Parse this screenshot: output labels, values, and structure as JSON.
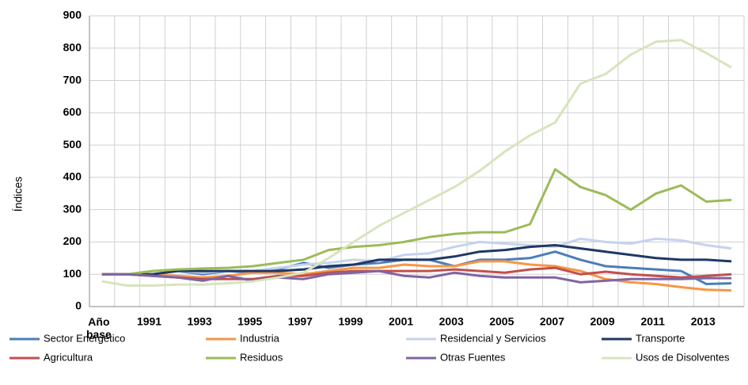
{
  "chart_data": {
    "type": "line",
    "y_label": "Índices",
    "categories": [
      "Año base",
      null,
      "1991",
      null,
      "1993",
      null,
      "1995",
      null,
      "1997",
      null,
      "1999",
      null,
      "2001",
      null,
      "2003",
      null,
      "2005",
      null,
      "2007",
      null,
      "2009",
      null,
      "2011",
      null,
      "2013",
      null
    ],
    "ylim": [
      0,
      900
    ],
    "yticks": [
      0,
      100,
      200,
      300,
      400,
      500,
      600,
      700,
      800,
      900
    ],
    "grid": true,
    "series": [
      {
        "name": "Sector Energético",
        "color": "#4a7ebb",
        "values": [
          100,
          100,
          100,
          110,
          100,
          110,
          105,
          115,
          135,
          120,
          130,
          135,
          145,
          145,
          125,
          145,
          145,
          150,
          170,
          145,
          125,
          120,
          115,
          110,
          70,
          72
        ]
      },
      {
        "name": "Industria",
        "color": "#f79646",
        "values": [
          100,
          100,
          100,
          95,
          90,
          95,
          105,
          105,
          100,
          110,
          120,
          120,
          130,
          125,
          125,
          140,
          140,
          130,
          125,
          110,
          85,
          75,
          70,
          60,
          52,
          50
        ]
      },
      {
        "name": "Residencial y Servicios",
        "color": "#c5d3ee",
        "values": [
          100,
          100,
          100,
          110,
          105,
          110,
          110,
          120,
          130,
          135,
          145,
          140,
          160,
          165,
          185,
          200,
          195,
          190,
          185,
          210,
          200,
          195,
          210,
          205,
          190,
          180
        ]
      },
      {
        "name": "Transporte",
        "color": "#1f3864",
        "values": [
          100,
          100,
          100,
          110,
          110,
          110,
          110,
          110,
          115,
          125,
          130,
          145,
          145,
          145,
          155,
          170,
          175,
          185,
          190,
          180,
          170,
          160,
          150,
          145,
          145,
          140
        ]
      },
      {
        "name": "Agricultura",
        "color": "#c0504d",
        "values": [
          100,
          100,
          95,
          90,
          85,
          85,
          85,
          95,
          95,
          105,
          110,
          110,
          110,
          110,
          115,
          110,
          105,
          115,
          120,
          100,
          108,
          100,
          95,
          90,
          95,
          100
        ]
      },
      {
        "name": "Residuos",
        "color": "#9bbb59",
        "values": [
          100,
          100,
          110,
          115,
          118,
          120,
          125,
          135,
          145,
          175,
          185,
          190,
          200,
          215,
          225,
          230,
          230,
          255,
          425,
          370,
          345,
          300,
          350,
          375,
          325,
          330
        ]
      },
      {
        "name": "Otras Fuentes",
        "color": "#8064a2",
        "values": [
          100,
          100,
          95,
          90,
          80,
          95,
          80,
          90,
          85,
          100,
          105,
          110,
          95,
          90,
          105,
          95,
          90,
          90,
          90,
          75,
          80,
          85,
          85,
          85,
          88,
          88
        ]
      },
      {
        "name": "Usos de Disolventes",
        "color": "#d7e4bd",
        "values": [
          78,
          65,
          65,
          68,
          68,
          72,
          78,
          90,
          105,
          150,
          200,
          250,
          290,
          330,
          370,
          420,
          480,
          530,
          570,
          690,
          720,
          780,
          820,
          825,
          785,
          740
        ]
      }
    ]
  }
}
